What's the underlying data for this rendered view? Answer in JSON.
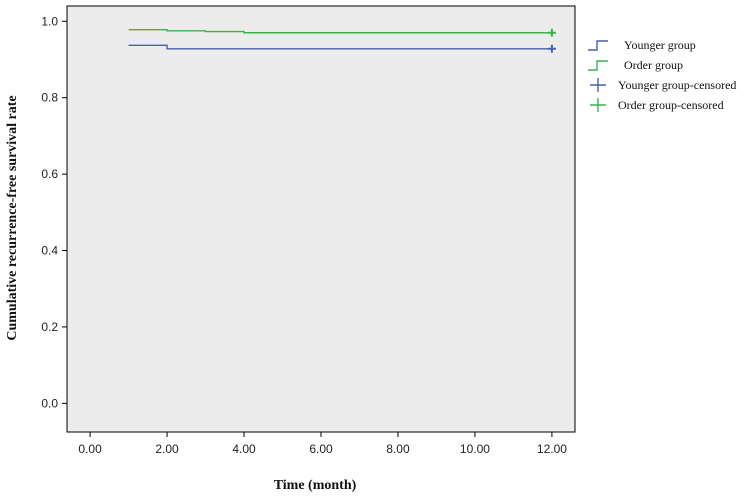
{
  "chart_data": {
    "type": "line",
    "xlabel": "Time (month)",
    "ylabel": "Cumulative recurrence-free survival rate",
    "xlim": [
      -0.6,
      12.6
    ],
    "ylim": [
      -0.075,
      1.04
    ],
    "x_ticks": [
      "0.00",
      "2.00",
      "4.00",
      "6.00",
      "8.00",
      "10.00",
      "12.00"
    ],
    "y_ticks": [
      "0.0",
      "0.2",
      "0.4",
      "0.6",
      "0.8",
      "1.0"
    ],
    "plot_background": "#ececec",
    "grid": false,
    "legend_position": "top-right",
    "series": [
      {
        "name": "Younger group",
        "color": "#4a5fa8",
        "step": true,
        "x": [
          1.0,
          2.0,
          12.0
        ],
        "y": [
          0.937,
          0.928,
          0.928
        ],
        "censored": [
          {
            "x": 12.0,
            "y": 0.928
          }
        ]
      },
      {
        "name": "Order group",
        "color": "#3cb44b",
        "step": true,
        "x": [
          1.0,
          2.0,
          3.0,
          4.0,
          12.0
        ],
        "y": [
          0.978,
          0.975,
          0.973,
          0.97,
          0.97
        ],
        "censored": [
          {
            "x": 12.0,
            "y": 0.97
          }
        ]
      }
    ],
    "legend": [
      {
        "label": "Younger group",
        "color": "#4a5fa8",
        "marker": "step"
      },
      {
        "label": "Order group",
        "color": "#3cb44b",
        "marker": "step"
      },
      {
        "label": "Younger group-censored",
        "color": "#4a5fa8",
        "marker": "plus"
      },
      {
        "label": "Order group-censored",
        "color": "#3cb44b",
        "marker": "plus"
      }
    ]
  }
}
